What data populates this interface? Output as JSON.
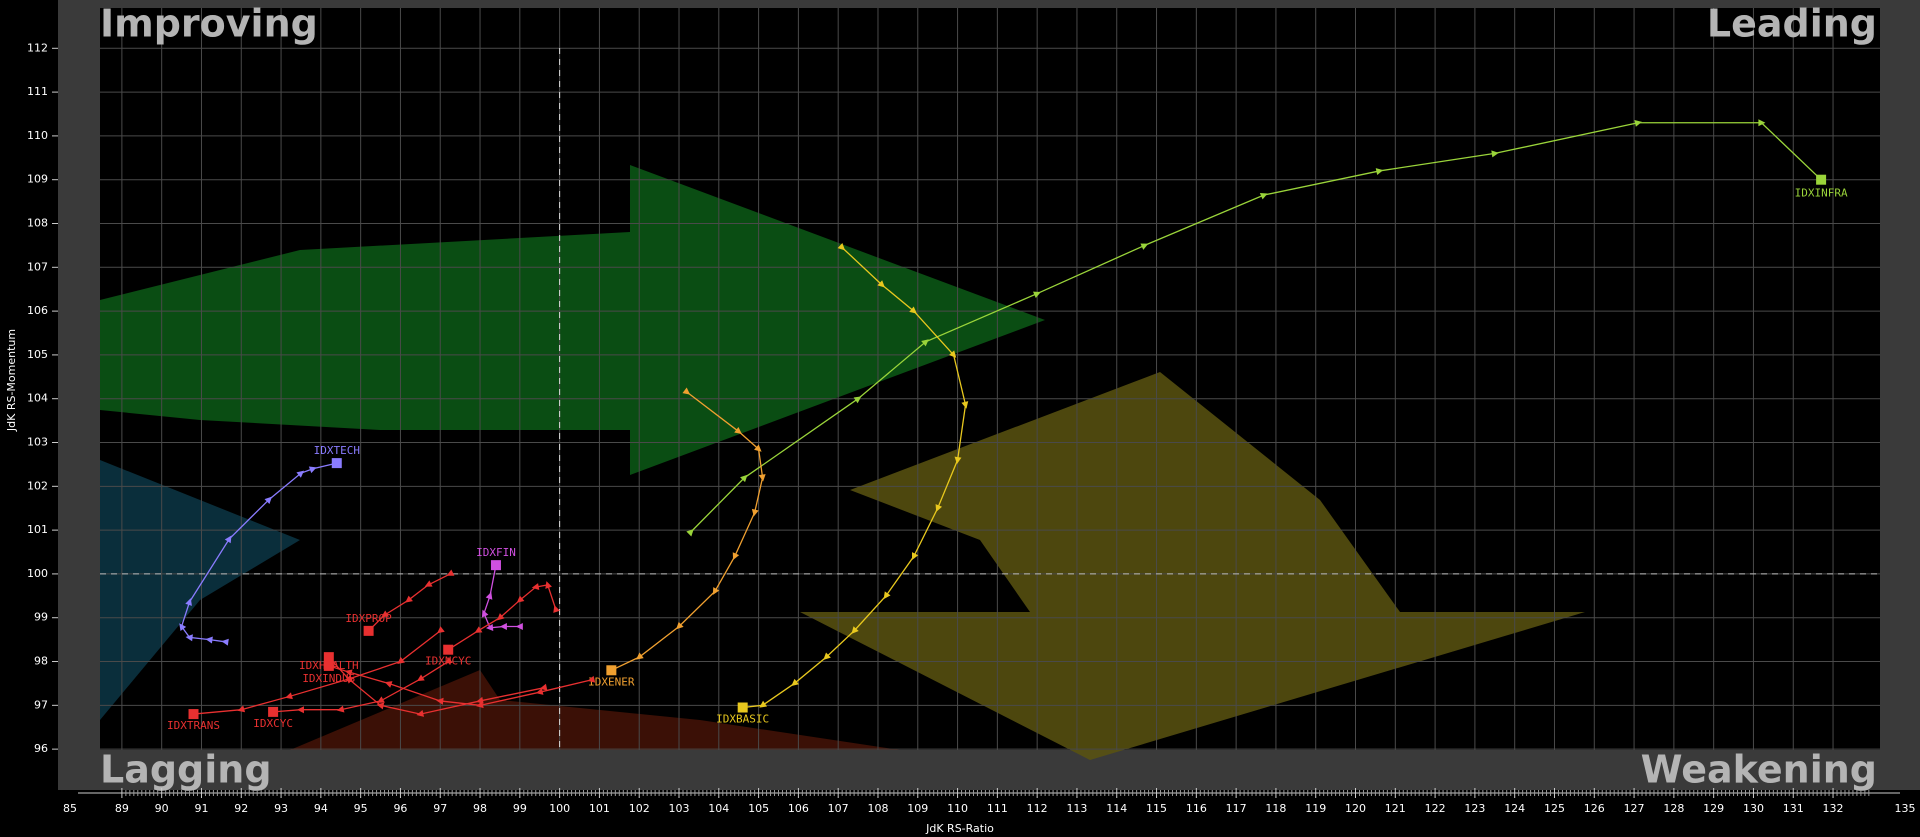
{
  "chart_data": {
    "type": "rrg",
    "quadrant_labels": {
      "top_left": "Improving",
      "top_right": "Leading",
      "bottom_left": "Lagging",
      "bottom_right": "Weakening"
    },
    "xlabel": "JdK RS-Ratio",
    "ylabel": "JdK RS-Momentum",
    "xlim": [
      88.45,
      133.18
    ],
    "ylim": [
      95.98,
      112.92
    ],
    "xticks": [
      89,
      90,
      91,
      92,
      93,
      94,
      95,
      96,
      97,
      98,
      99,
      100,
      101,
      102,
      103,
      104,
      105,
      106,
      107,
      108,
      109,
      110,
      111,
      112,
      113,
      114,
      115,
      116,
      117,
      118,
      119,
      120,
      121,
      122,
      123,
      124,
      125,
      126,
      127,
      128,
      129,
      130,
      131,
      132
    ],
    "yticks": [
      96,
      97,
      98,
      99,
      100,
      101,
      102,
      103,
      104,
      105,
      106,
      107,
      108,
      109,
      110,
      111,
      112
    ],
    "x_axis_end_labels": [
      85,
      135
    ],
    "reference": {
      "x": 100,
      "y": 100
    },
    "grid": true,
    "series": [
      {
        "name": "IDXINFRA",
        "color": "#9ad43a",
        "x": [
          103.3,
          104.65,
          107.5,
          109.2,
          112,
          114.7,
          117.7,
          120.6,
          123.5,
          127.1,
          130.2,
          131.7
        ],
        "values": [
          100.96,
          102.2,
          104.0,
          105.3,
          106.4,
          107.5,
          108.65,
          109.2,
          109.6,
          110.3,
          110.3,
          109.0
        ]
      },
      {
        "name": "IDXBASIC",
        "color": "#e8c81e",
        "x": [
          107.1,
          108.1,
          108.9,
          109.9,
          110.2,
          110,
          109.5,
          108.9,
          108.2,
          107.4,
          106.7,
          105.9,
          105.1,
          104.6
        ],
        "values": [
          107.45,
          106.6,
          106.0,
          105.0,
          103.86,
          102.6,
          101.5,
          100.4,
          99.5,
          98.7,
          98.1,
          97.5,
          97.0,
          96.95
        ]
      },
      {
        "name": "IDXENER",
        "color": "#f0a030",
        "x": [
          103.2,
          104.5,
          105,
          105.1,
          104.9,
          104.4,
          103.9,
          103,
          102,
          101.3
        ],
        "values": [
          104.15,
          103.25,
          102.85,
          102.2,
          101.4,
          100.4,
          99.6,
          98.8,
          98.1,
          97.8
        ]
      },
      {
        "name": "IDXTECH",
        "color": "#8a7cff",
        "x": [
          91.6,
          91.2,
          90.7,
          90.5,
          90.7,
          91.7,
          92.7,
          93.5,
          93.8,
          94.4
        ],
        "values": [
          98.45,
          98.5,
          98.55,
          98.8,
          99.36,
          100.8,
          101.7,
          102.3,
          102.4,
          102.53
        ]
      },
      {
        "name": "IDXFIN",
        "color": "#d050e0",
        "x": [
          99,
          98.6,
          98.25,
          98.1,
          98.25,
          98.4
        ],
        "values": [
          98.8,
          98.8,
          98.77,
          99.1,
          99.5,
          100.2
        ]
      },
      {
        "name": "IDXNCYC",
        "color": "#e83030",
        "x": [
          99.9,
          99.7,
          99.4,
          99,
          98.5,
          97.95,
          97.2
        ],
        "values": [
          99.2,
          99.75,
          99.7,
          99.4,
          99,
          98.7,
          98.27
        ]
      },
      {
        "name": "IDXPROP",
        "color": "#e83030",
        "x": [
          97.25,
          96.7,
          96.2,
          95.6,
          95.2
        ],
        "values": [
          100,
          99.75,
          99.4,
          99.06,
          98.7
        ]
      },
      {
        "name": "IDXHEALTH",
        "color": "#e83030",
        "x": [
          99.6,
          98,
          96.5,
          95.5,
          94.7,
          94.2
        ],
        "values": [
          97.4,
          97.1,
          96.8,
          97,
          97.6,
          98.1
        ]
      },
      {
        "name": "IDXINDUS",
        "color": "#e83030",
        "x": [
          100.8,
          99.5,
          98,
          97,
          95.7,
          94.7,
          94.2
        ],
        "values": [
          97.58,
          97.3,
          97,
          97.1,
          97.5,
          97.76,
          97.9
        ]
      },
      {
        "name": "IDXCYC",
        "color": "#e83030",
        "x": [
          97.2,
          96.5,
          95.5,
          94.5,
          93.5,
          92.8
        ],
        "values": [
          98.0,
          97.6,
          97.1,
          96.9,
          96.9,
          96.85
        ]
      },
      {
        "name": "IDXTRANS",
        "color": "#e83030",
        "x": [
          97,
          96,
          94.7,
          93.2,
          92,
          90.8
        ],
        "values": [
          98.7,
          98,
          97.6,
          97.2,
          96.9,
          96.8
        ]
      }
    ]
  }
}
